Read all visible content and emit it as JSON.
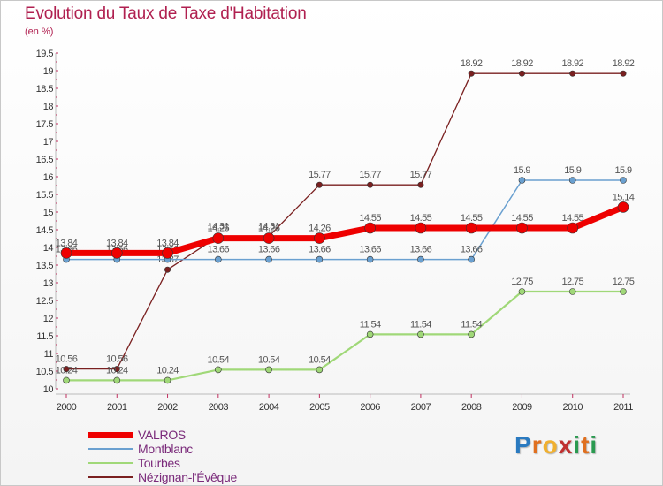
{
  "title": "Evolution du Taux de Taxe d'Habitation",
  "unit_label": "(en %)",
  "brand": {
    "chars": [
      "P",
      "r",
      "o",
      "x",
      "i",
      "t",
      "i"
    ],
    "colors": [
      "#2a7ac0",
      "#e07020",
      "#f0b030",
      "#c03030",
      "#2a9a50",
      "#e07020",
      "#2a9a50"
    ]
  },
  "chart_data": {
    "type": "line",
    "title": "Evolution du Taux de Taxe d'Habitation",
    "ylabel": "(en %)",
    "xlabel": "",
    "ylim": [
      10,
      19.5
    ],
    "grid": false,
    "legend_position": "bottom-left",
    "x": [
      2000,
      2001,
      2002,
      2003,
      2004,
      2005,
      2006,
      2007,
      2008,
      2009,
      2010,
      2011
    ],
    "yticks": [
      "10",
      "10.5",
      "11",
      "11.5",
      "12",
      "12.5",
      "13",
      "13.5",
      "14",
      "14.5",
      "15",
      "15.5",
      "16",
      "16.5",
      "17",
      "17.5",
      "18",
      "18.5",
      "19",
      "19.5"
    ],
    "series": [
      {
        "name": "Nézignan-l'Évêque",
        "color": "#7a2020",
        "width": 1.3,
        "marker": 3.2,
        "values": [
          10.56,
          10.56,
          13.37,
          14.31,
          14.31,
          15.77,
          15.77,
          15.77,
          18.92,
          18.92,
          18.92,
          18.92
        ],
        "labels": [
          "10.56",
          "10.56",
          "13.37",
          "14.31",
          "14.31",
          "15.77",
          "15.77",
          "15.77",
          "18.92",
          "18.92",
          "18.92",
          "18.92"
        ]
      },
      {
        "name": "Tourbes",
        "color": "#a0d878",
        "width": 2.2,
        "marker": 3.5,
        "values": [
          10.24,
          10.24,
          10.24,
          10.54,
          10.54,
          10.54,
          11.54,
          11.54,
          11.54,
          12.75,
          12.75,
          12.75
        ],
        "labels": [
          "10.24",
          "10.24",
          "10.24",
          "10.54",
          "10.54",
          "10.54",
          "11.54",
          "11.54",
          "11.54",
          "12.75",
          "12.75",
          "12.75"
        ]
      },
      {
        "name": "Montblanc",
        "color": "#6aa0d0",
        "width": 1.5,
        "marker": 3.5,
        "values": [
          13.66,
          13.66,
          13.66,
          13.66,
          13.66,
          13.66,
          13.66,
          13.66,
          13.66,
          15.9,
          15.9,
          15.9
        ],
        "labels": [
          "13.66",
          "13.66",
          "13.66",
          "13.66",
          "13.66",
          "13.66",
          "13.66",
          "13.66",
          "13.66",
          "15.9",
          "15.9",
          "15.9"
        ]
      },
      {
        "name": "VALROS",
        "color": "#ee0000",
        "width": 7,
        "marker": 6,
        "values": [
          13.84,
          13.84,
          13.84,
          14.26,
          14.26,
          14.26,
          14.55,
          14.55,
          14.55,
          14.55,
          14.55,
          15.14
        ],
        "labels": [
          "13.84",
          "13.84",
          "13.84",
          "14.26",
          "14.26",
          "14.26",
          "14.55",
          "14.55",
          "14.55",
          "14.55",
          "14.55",
          "15.14"
        ]
      }
    ]
  }
}
